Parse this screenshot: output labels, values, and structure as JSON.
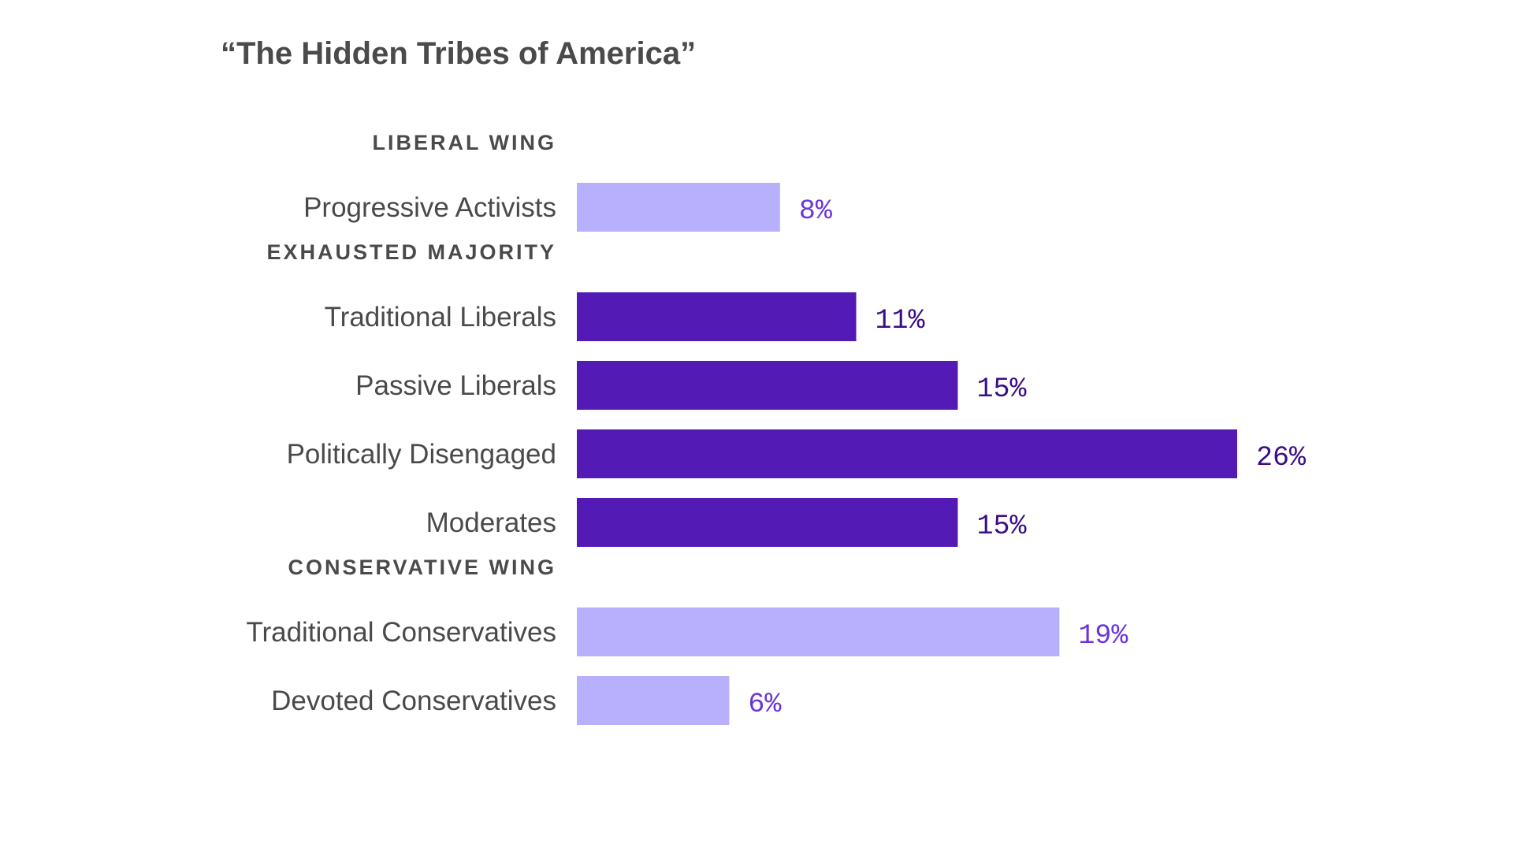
{
  "chart_data": {
    "type": "bar",
    "orientation": "horizontal",
    "title": "“The Hidden Tribes of America”",
    "xlabel": "",
    "ylabel": "",
    "xlim": [
      0,
      26
    ],
    "grid": false,
    "value_suffix": "%",
    "colors": {
      "light_fill": "#b8b0fd",
      "light_text": "#6a35d9",
      "dark_fill": "#531ab6",
      "dark_text": "#3a0e85",
      "label_text": "#4a4a4a"
    },
    "groups": [
      {
        "name": "LIBERAL WING",
        "shade": "light",
        "categories": [
          "Progressive Activists"
        ],
        "values": [
          8
        ]
      },
      {
        "name": "EXHAUSTED MAJORITY",
        "shade": "dark",
        "categories": [
          "Traditional Liberals",
          "Passive Liberals",
          "Politically Disengaged",
          "Moderates"
        ],
        "values": [
          11,
          15,
          26,
          15
        ]
      },
      {
        "name": "CONSERVATIVE WING",
        "shade": "light",
        "categories": [
          "Traditional Conservatives",
          "Devoted Conservatives"
        ],
        "values": [
          19,
          6
        ]
      }
    ]
  }
}
